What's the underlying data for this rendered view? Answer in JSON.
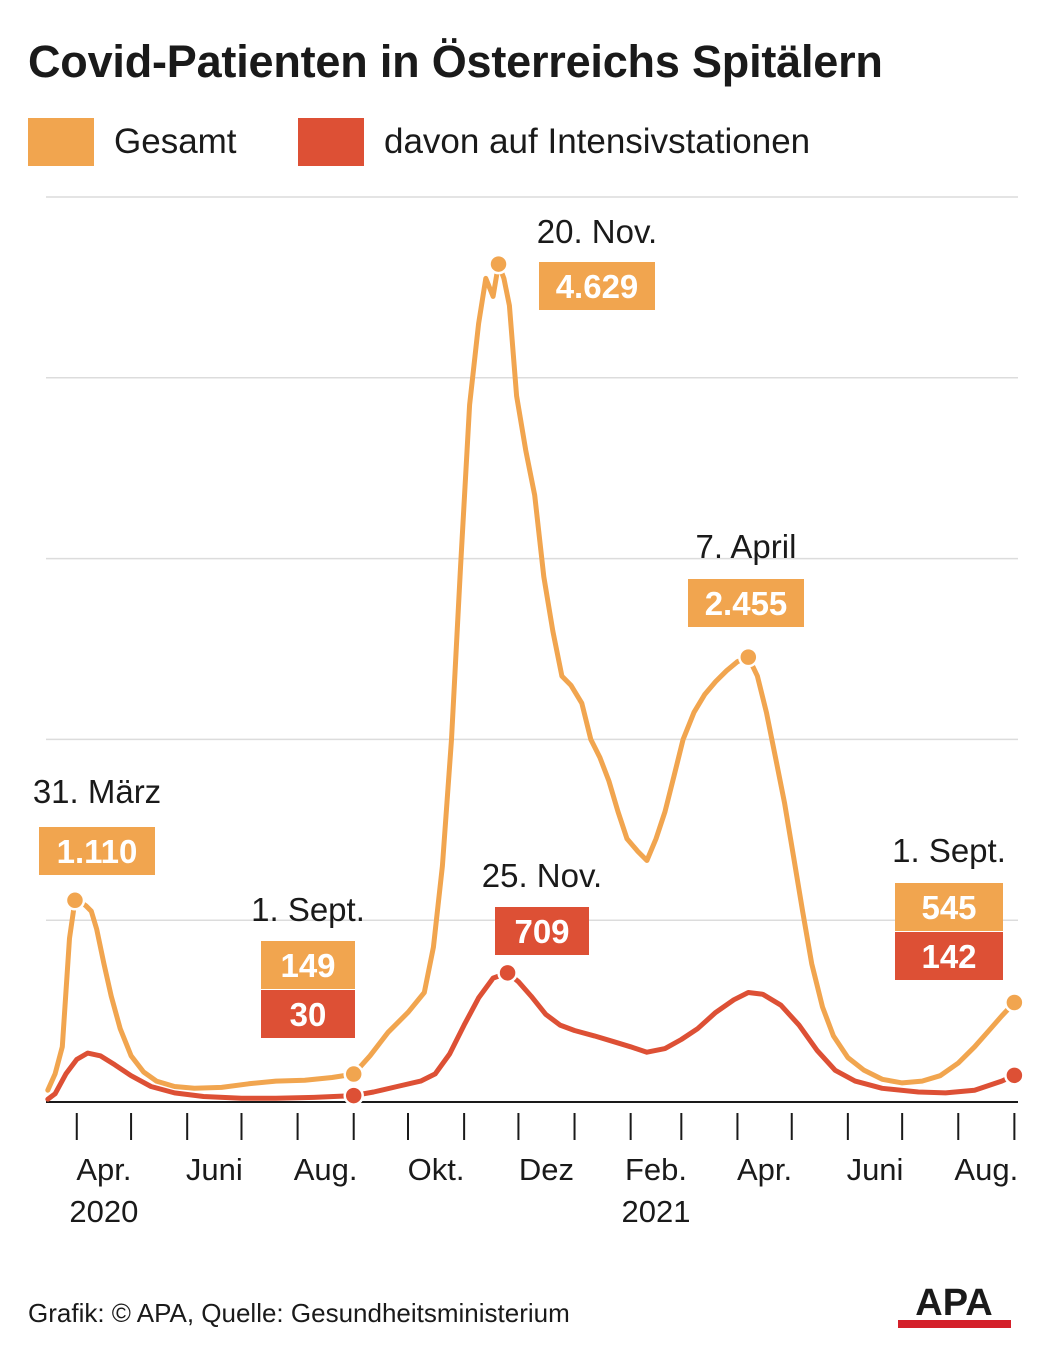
{
  "title": "Covid-Patienten in Österreichs Spitälern",
  "legend": [
    {
      "label": "Gesamt",
      "color": "#f1a54f"
    },
    {
      "label": "davon auf Intensivstationen",
      "color": "#dd5035"
    }
  ],
  "footer": {
    "credit": "Grafik: © APA, Quelle: Gesundheitsministerium",
    "logo_text": "APA"
  },
  "chart_data": {
    "type": "line",
    "title": "Covid-Patienten in Österreichs Spitälern",
    "xlabel": "",
    "ylabel": "",
    "ylim": [
      0,
      5000
    ],
    "y_gridlines": [
      1000,
      2000,
      3000,
      4000,
      5000
    ],
    "y_tick_labels_shown": false,
    "x_range": [
      "2020-03-15",
      "2021-09-03"
    ],
    "x_ticks": [
      {
        "date": "2020-04-01",
        "label": "Apr.",
        "year": "2020"
      },
      {
        "date": "2020-05-01",
        "label": ""
      },
      {
        "date": "2020-06-01",
        "label": "Juni"
      },
      {
        "date": "2020-07-01",
        "label": ""
      },
      {
        "date": "2020-08-01",
        "label": "Aug."
      },
      {
        "date": "2020-09-01",
        "label": ""
      },
      {
        "date": "2020-10-01",
        "label": "Okt."
      },
      {
        "date": "2020-11-01",
        "label": ""
      },
      {
        "date": "2020-12-01",
        "label": "Dez"
      },
      {
        "date": "2021-01-01",
        "label": ""
      },
      {
        "date": "2021-02-01",
        "label": "Feb.",
        "year": "2021"
      },
      {
        "date": "2021-03-01",
        "label": ""
      },
      {
        "date": "2021-04-01",
        "label": "Apr."
      },
      {
        "date": "2021-05-01",
        "label": ""
      },
      {
        "date": "2021-06-01",
        "label": "Juni"
      },
      {
        "date": "2021-07-01",
        "label": ""
      },
      {
        "date": "2021-08-01",
        "label": "Aug."
      },
      {
        "date": "2021-09-01",
        "label": ""
      }
    ],
    "grid": true,
    "legend_position": "top-left",
    "series": [
      {
        "name": "Gesamt",
        "color": "#f1a54f",
        "points": [
          [
            "2020-03-16",
            60
          ],
          [
            "2020-03-20",
            150
          ],
          [
            "2020-03-24",
            300
          ],
          [
            "2020-03-28",
            900
          ],
          [
            "2020-03-31",
            1110
          ],
          [
            "2020-04-03",
            1100
          ],
          [
            "2020-04-06",
            1080
          ],
          [
            "2020-04-09",
            1050
          ],
          [
            "2020-04-12",
            950
          ],
          [
            "2020-04-16",
            760
          ],
          [
            "2020-04-20",
            580
          ],
          [
            "2020-04-25",
            400
          ],
          [
            "2020-05-01",
            250
          ],
          [
            "2020-05-08",
            160
          ],
          [
            "2020-05-15",
            110
          ],
          [
            "2020-05-25",
            80
          ],
          [
            "2020-06-05",
            70
          ],
          [
            "2020-06-20",
            75
          ],
          [
            "2020-07-05",
            95
          ],
          [
            "2020-07-20",
            110
          ],
          [
            "2020-08-05",
            115
          ],
          [
            "2020-08-20",
            130
          ],
          [
            "2020-09-01",
            149
          ],
          [
            "2020-09-10",
            250
          ],
          [
            "2020-09-20",
            380
          ],
          [
            "2020-10-01",
            490
          ],
          [
            "2020-10-10",
            600
          ],
          [
            "2020-10-15",
            850
          ],
          [
            "2020-10-20",
            1300
          ],
          [
            "2020-10-25",
            2000
          ],
          [
            "2020-10-30",
            2950
          ],
          [
            "2020-11-04",
            3850
          ],
          [
            "2020-11-09",
            4300
          ],
          [
            "2020-11-13",
            4550
          ],
          [
            "2020-11-17",
            4450
          ],
          [
            "2020-11-20",
            4629
          ],
          [
            "2020-11-23",
            4550
          ],
          [
            "2020-11-26",
            4400
          ],
          [
            "2020-11-30",
            3900
          ],
          [
            "2020-12-05",
            3600
          ],
          [
            "2020-12-10",
            3350
          ],
          [
            "2020-12-15",
            2900
          ],
          [
            "2020-12-20",
            2600
          ],
          [
            "2020-12-25",
            2350
          ],
          [
            "2020-12-30",
            2300
          ],
          [
            "2021-01-05",
            2200
          ],
          [
            "2021-01-10",
            2000
          ],
          [
            "2021-01-15",
            1900
          ],
          [
            "2021-01-20",
            1770
          ],
          [
            "2021-01-25",
            1600
          ],
          [
            "2021-01-30",
            1450
          ],
          [
            "2021-02-05",
            1380
          ],
          [
            "2021-02-10",
            1330
          ],
          [
            "2021-02-15",
            1450
          ],
          [
            "2021-02-20",
            1600
          ],
          [
            "2021-02-25",
            1800
          ],
          [
            "2021-03-02",
            2000
          ],
          [
            "2021-03-08",
            2150
          ],
          [
            "2021-03-14",
            2250
          ],
          [
            "2021-03-20",
            2320
          ],
          [
            "2021-03-26",
            2380
          ],
          [
            "2021-04-01",
            2430
          ],
          [
            "2021-04-07",
            2455
          ],
          [
            "2021-04-12",
            2350
          ],
          [
            "2021-04-17",
            2150
          ],
          [
            "2021-04-22",
            1900
          ],
          [
            "2021-04-27",
            1650
          ],
          [
            "2021-05-02",
            1350
          ],
          [
            "2021-05-07",
            1050
          ],
          [
            "2021-05-12",
            760
          ],
          [
            "2021-05-18",
            520
          ],
          [
            "2021-05-24",
            360
          ],
          [
            "2021-06-01",
            240
          ],
          [
            "2021-06-10",
            170
          ],
          [
            "2021-06-20",
            120
          ],
          [
            "2021-07-01",
            100
          ],
          [
            "2021-07-12",
            110
          ],
          [
            "2021-07-22",
            140
          ],
          [
            "2021-08-01",
            210
          ],
          [
            "2021-08-10",
            300
          ],
          [
            "2021-08-18",
            390
          ],
          [
            "2021-08-25",
            470
          ],
          [
            "2021-09-01",
            545
          ]
        ]
      },
      {
        "name": "davon auf Intensivstationen",
        "color": "#dd5035",
        "points": [
          [
            "2020-03-16",
            10
          ],
          [
            "2020-03-20",
            40
          ],
          [
            "2020-03-26",
            150
          ],
          [
            "2020-04-01",
            230
          ],
          [
            "2020-04-07",
            265
          ],
          [
            "2020-04-14",
            250
          ],
          [
            "2020-04-22",
            200
          ],
          [
            "2020-05-01",
            140
          ],
          [
            "2020-05-12",
            80
          ],
          [
            "2020-05-25",
            45
          ],
          [
            "2020-06-10",
            25
          ],
          [
            "2020-07-01",
            15
          ],
          [
            "2020-07-20",
            15
          ],
          [
            "2020-08-10",
            20
          ],
          [
            "2020-09-01",
            30
          ],
          [
            "2020-09-12",
            50
          ],
          [
            "2020-09-25",
            80
          ],
          [
            "2020-10-08",
            110
          ],
          [
            "2020-10-16",
            150
          ],
          [
            "2020-10-24",
            260
          ],
          [
            "2020-11-01",
            420
          ],
          [
            "2020-11-09",
            570
          ],
          [
            "2020-11-17",
            680
          ],
          [
            "2020-11-25",
            709
          ],
          [
            "2020-12-01",
            660
          ],
          [
            "2020-12-08",
            580
          ],
          [
            "2020-12-16",
            480
          ],
          [
            "2020-12-24",
            420
          ],
          [
            "2021-01-01",
            390
          ],
          [
            "2021-01-12",
            360
          ],
          [
            "2021-01-22",
            330
          ],
          [
            "2021-02-01",
            300
          ],
          [
            "2021-02-10",
            270
          ],
          [
            "2021-02-20",
            290
          ],
          [
            "2021-03-01",
            340
          ],
          [
            "2021-03-10",
            400
          ],
          [
            "2021-03-20",
            490
          ],
          [
            "2021-03-30",
            560
          ],
          [
            "2021-04-07",
            600
          ],
          [
            "2021-04-15",
            590
          ],
          [
            "2021-04-25",
            530
          ],
          [
            "2021-05-05",
            420
          ],
          [
            "2021-05-15",
            280
          ],
          [
            "2021-05-25",
            170
          ],
          [
            "2021-06-05",
            110
          ],
          [
            "2021-06-20",
            70
          ],
          [
            "2021-07-10",
            50
          ],
          [
            "2021-07-25",
            45
          ],
          [
            "2021-08-10",
            60
          ],
          [
            "2021-08-25",
            110
          ],
          [
            "2021-09-01",
            142
          ]
        ]
      }
    ],
    "annotations": [
      {
        "date_label": "31. März",
        "values": [
          {
            "value": "1.110",
            "series": 0
          }
        ],
        "x": "2020-03-31",
        "y": 1110,
        "marker_series": 0
      },
      {
        "date_label": "1. Sept.",
        "values": [
          {
            "value": "149",
            "series": 0
          },
          {
            "value": "30",
            "series": 1
          }
        ],
        "x": "2020-09-01",
        "y": 149,
        "marker_series": 0,
        "y2": 30
      },
      {
        "date_label": "20. Nov.",
        "values": [
          {
            "value": "4.629",
            "series": 0
          }
        ],
        "x": "2020-11-20",
        "y": 4629,
        "marker_series": 0
      },
      {
        "date_label": "25. Nov.",
        "values": [
          {
            "value": "709",
            "series": 1
          }
        ],
        "x": "2020-11-25",
        "y": 709,
        "marker_series": 1
      },
      {
        "date_label": "7. April",
        "values": [
          {
            "value": "2.455",
            "series": 0
          }
        ],
        "x": "2021-04-07",
        "y": 2455,
        "marker_series": 0
      },
      {
        "date_label": "1. Sept.",
        "values": [
          {
            "value": "545",
            "series": 0
          },
          {
            "value": "142",
            "series": 1
          }
        ],
        "x": "2021-09-01",
        "y": 545,
        "marker_series": 0,
        "y2": 142
      }
    ]
  }
}
